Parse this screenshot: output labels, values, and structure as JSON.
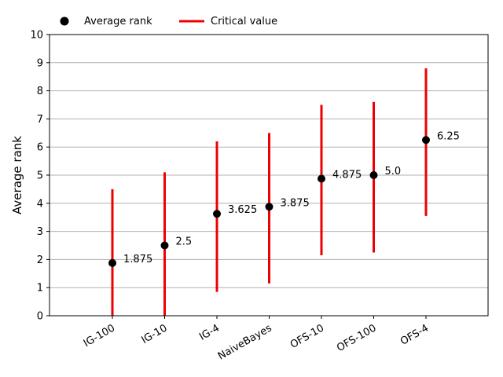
{
  "chart_data": {
    "type": "scatter",
    "categories": [
      "IG-100",
      "IG-10",
      "IG-4",
      "NaiveBayes",
      "OFS-10",
      "OFS-100",
      "OFS-4"
    ],
    "series": [
      {
        "name": "Average rank",
        "values": [
          1.875,
          2.5,
          3.625,
          3.875,
          4.875,
          5.0,
          6.25
        ],
        "labels": [
          "1.875",
          "2.5",
          "3.625",
          "3.875",
          "4.875",
          "5.0",
          "6.25"
        ]
      },
      {
        "name": "Critical value",
        "intervals": [
          [
            0,
            4.5
          ],
          [
            0,
            5.1
          ],
          [
            0.85,
            6.2
          ],
          [
            1.15,
            6.5
          ],
          [
            2.15,
            7.5
          ],
          [
            2.25,
            7.6
          ],
          [
            3.55,
            8.8
          ]
        ]
      }
    ],
    "xlabel": "",
    "ylabel": "Average rank",
    "ylim": [
      0,
      10
    ],
    "yticks": [
      "0",
      "1",
      "2",
      "3",
      "4",
      "5",
      "6",
      "7",
      "8",
      "9",
      "10"
    ],
    "grid": "horizontal",
    "legend": "top-left",
    "colors": {
      "points": "#000000",
      "intervals": "#ee0000",
      "grid": "#b0b0b0"
    }
  }
}
